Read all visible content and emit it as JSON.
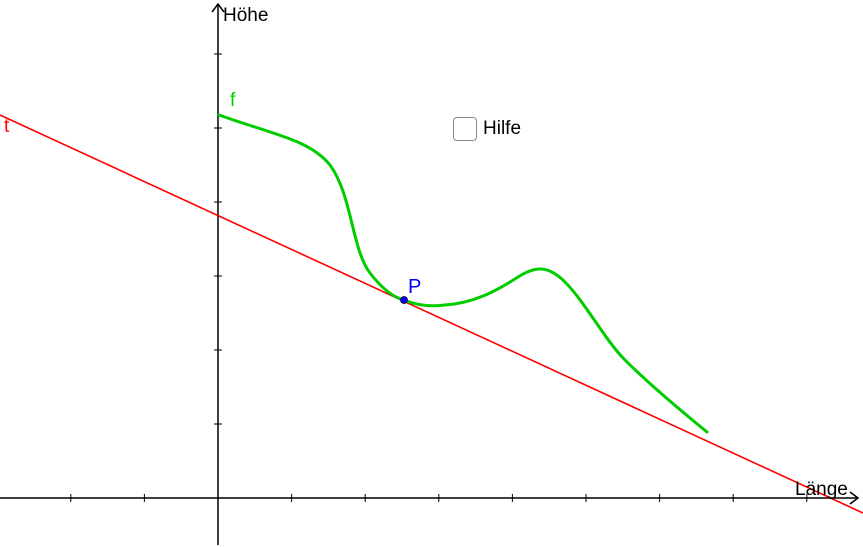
{
  "axes": {
    "x_label": "Länge",
    "y_label": "Höhe"
  },
  "curve": {
    "name": "f",
    "color": "#00cc00"
  },
  "tangent": {
    "name": "t",
    "color": "#ff0000"
  },
  "point": {
    "name": "P",
    "color": "#0000ff"
  },
  "help_checkbox": {
    "label": "Hilfe",
    "checked": false
  }
}
